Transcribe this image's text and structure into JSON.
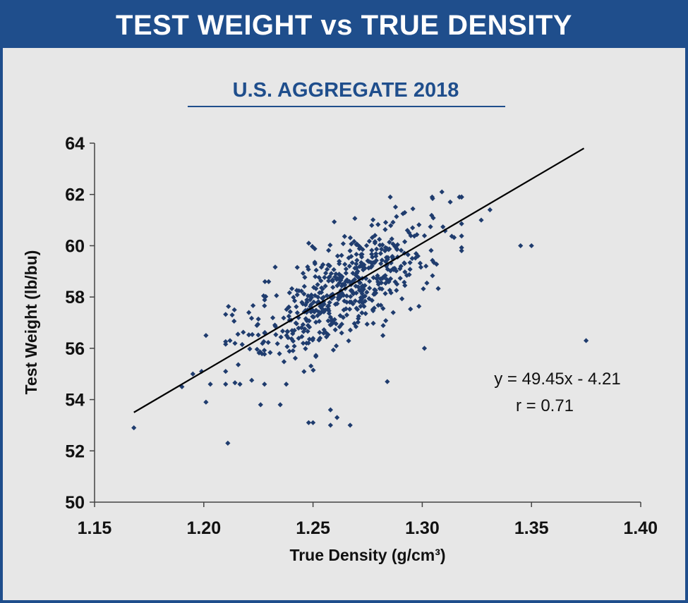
{
  "header": {
    "title": "TEST WEIGHT vs TRUE DENSITY"
  },
  "colors": {
    "brand": "#1f4e8c",
    "panel": "#e7e7e7",
    "point": "#1f3c6e",
    "trend": "#000000"
  },
  "chart_data": {
    "type": "scatter",
    "title": "U.S. AGGREGATE 2018",
    "xlabel": "True Density (g/cm³)",
    "ylabel": "Test Weight (lb/bu)",
    "xlim": [
      1.15,
      1.4
    ],
    "ylim": [
      50,
      64
    ],
    "x_ticks": [
      "1.15",
      "1.20",
      "1.25",
      "1.30",
      "1.35",
      "1.40"
    ],
    "y_ticks": [
      "50",
      "52",
      "54",
      "56",
      "58",
      "60",
      "62",
      "64"
    ],
    "trendline": {
      "x": [
        1.168,
        1.374
      ],
      "y": [
        53.5,
        63.8
      ]
    },
    "annotation": {
      "equation": "y = 49.45x - 4.21",
      "r": "r = 0.71"
    },
    "outliers": [
      {
        "x": 1.168,
        "y": 52.9
      },
      {
        "x": 1.19,
        "y": 54.5
      },
      {
        "x": 1.201,
        "y": 53.9
      },
      {
        "x": 1.211,
        "y": 52.3
      },
      {
        "x": 1.226,
        "y": 53.8
      },
      {
        "x": 1.235,
        "y": 53.8
      },
      {
        "x": 1.248,
        "y": 53.1
      },
      {
        "x": 1.25,
        "y": 53.1
      },
      {
        "x": 1.258,
        "y": 53.6
      },
      {
        "x": 1.258,
        "y": 53.0
      },
      {
        "x": 1.261,
        "y": 53.3
      },
      {
        "x": 1.267,
        "y": 53.0
      },
      {
        "x": 1.201,
        "y": 56.5
      },
      {
        "x": 1.214,
        "y": 57.5
      },
      {
        "x": 1.213,
        "y": 57.3
      },
      {
        "x": 1.228,
        "y": 58.6
      },
      {
        "x": 1.284,
        "y": 54.7
      },
      {
        "x": 1.301,
        "y": 56.0
      },
      {
        "x": 1.345,
        "y": 60.0
      },
      {
        "x": 1.35,
        "y": 60.0
      },
      {
        "x": 1.375,
        "y": 56.3
      },
      {
        "x": 1.331,
        "y": 61.4
      },
      {
        "x": 1.327,
        "y": 61.0
      },
      {
        "x": 1.309,
        "y": 62.1
      },
      {
        "x": 1.317,
        "y": 61.9
      },
      {
        "x": 1.199,
        "y": 55.1
      },
      {
        "x": 1.195,
        "y": 55.0
      },
      {
        "x": 1.21,
        "y": 55.1
      },
      {
        "x": 1.212,
        "y": 56.3
      },
      {
        "x": 1.203,
        "y": 54.6
      }
    ],
    "cluster": {
      "n": 560,
      "x_mean": 1.265,
      "x_sd": 0.021,
      "slope": 49.45,
      "intercept": -4.21,
      "residual_sd": 0.95
    }
  }
}
